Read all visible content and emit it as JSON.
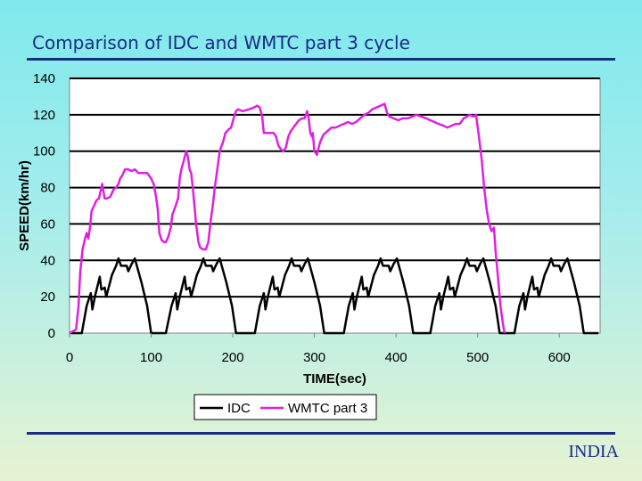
{
  "slide": {
    "title": "Comparison of IDC and WMTC part 3 cycle",
    "footer": "INDIA"
  },
  "colors": {
    "title": "#1b2c86",
    "plot_background": "#ffffff",
    "idc": "#000000",
    "wmtc": "#e020e0"
  },
  "chart_data": {
    "type": "line",
    "xlabel": "TIME(sec)",
    "ylabel": "SPEED(km/hr)",
    "xlim": [
      0,
      650
    ],
    "ylim": [
      0,
      140
    ],
    "xticks": [
      0,
      100,
      200,
      300,
      400,
      500,
      600
    ],
    "yticks": [
      0,
      20,
      40,
      60,
      80,
      100,
      120,
      140
    ],
    "grid": "horizontal",
    "legend_position": "bottom",
    "series": [
      {
        "name": "IDC",
        "color": "#000000",
        "points": [
          [
            0,
            0
          ],
          [
            15,
            0
          ],
          [
            21,
            15
          ],
          [
            26,
            22
          ],
          [
            28,
            13
          ],
          [
            31,
            20
          ],
          [
            37,
            31
          ],
          [
            39,
            24
          ],
          [
            43,
            25
          ],
          [
            45,
            20
          ],
          [
            52,
            32
          ],
          [
            57,
            37
          ],
          [
            60,
            41
          ],
          [
            63,
            37
          ],
          [
            70,
            37
          ],
          [
            72,
            34
          ],
          [
            76,
            38
          ],
          [
            80,
            41
          ],
          [
            88,
            28
          ],
          [
            95,
            15
          ],
          [
            100,
            0
          ],
          [
            118,
            0
          ],
          [
            125,
            15
          ],
          [
            130,
            22
          ],
          [
            132,
            13
          ],
          [
            135,
            20
          ],
          [
            141,
            31
          ],
          [
            143,
            24
          ],
          [
            147,
            25
          ],
          [
            149,
            20
          ],
          [
            156,
            32
          ],
          [
            161,
            37
          ],
          [
            164,
            41
          ],
          [
            167,
            37
          ],
          [
            174,
            37
          ],
          [
            176,
            34
          ],
          [
            180,
            38
          ],
          [
            184,
            41
          ],
          [
            192,
            28
          ],
          [
            199,
            15
          ],
          [
            204,
            0
          ],
          [
            227,
            0
          ],
          [
            233,
            15
          ],
          [
            238,
            22
          ],
          [
            240,
            13
          ],
          [
            243,
            20
          ],
          [
            249,
            31
          ],
          [
            251,
            24
          ],
          [
            255,
            25
          ],
          [
            257,
            20
          ],
          [
            264,
            32
          ],
          [
            269,
            37
          ],
          [
            272,
            41
          ],
          [
            275,
            37
          ],
          [
            282,
            37
          ],
          [
            284,
            34
          ],
          [
            288,
            38
          ],
          [
            292,
            41
          ],
          [
            300,
            28
          ],
          [
            307,
            15
          ],
          [
            312,
            0
          ],
          [
            336,
            0
          ],
          [
            342,
            15
          ],
          [
            347,
            22
          ],
          [
            349,
            13
          ],
          [
            352,
            20
          ],
          [
            358,
            31
          ],
          [
            360,
            24
          ],
          [
            364,
            25
          ],
          [
            366,
            20
          ],
          [
            373,
            32
          ],
          [
            378,
            37
          ],
          [
            381,
            41
          ],
          [
            384,
            37
          ],
          [
            391,
            37
          ],
          [
            393,
            34
          ],
          [
            397,
            38
          ],
          [
            401,
            41
          ],
          [
            409,
            28
          ],
          [
            416,
            15
          ],
          [
            421,
            0
          ],
          [
            442,
            0
          ],
          [
            448,
            15
          ],
          [
            453,
            22
          ],
          [
            455,
            13
          ],
          [
            458,
            20
          ],
          [
            464,
            31
          ],
          [
            466,
            24
          ],
          [
            470,
            25
          ],
          [
            472,
            20
          ],
          [
            479,
            32
          ],
          [
            484,
            37
          ],
          [
            487,
            41
          ],
          [
            490,
            37
          ],
          [
            497,
            37
          ],
          [
            499,
            34
          ],
          [
            503,
            38
          ],
          [
            507,
            41
          ],
          [
            515,
            28
          ],
          [
            522,
            15
          ],
          [
            527,
            0
          ],
          [
            545,
            0
          ],
          [
            551,
            15
          ],
          [
            556,
            22
          ],
          [
            558,
            13
          ],
          [
            561,
            20
          ],
          [
            567,
            31
          ],
          [
            569,
            24
          ],
          [
            573,
            25
          ],
          [
            575,
            20
          ],
          [
            582,
            32
          ],
          [
            587,
            37
          ],
          [
            590,
            41
          ],
          [
            593,
            37
          ],
          [
            600,
            37
          ],
          [
            602,
            34
          ],
          [
            606,
            38
          ],
          [
            610,
            41
          ],
          [
            618,
            28
          ],
          [
            625,
            15
          ],
          [
            630,
            0
          ],
          [
            648,
            0
          ]
        ]
      },
      {
        "name": "WMTC part 3",
        "color": "#e020e0",
        "points": [
          [
            0,
            0
          ],
          [
            8,
            2
          ],
          [
            11,
            15
          ],
          [
            13,
            33
          ],
          [
            16,
            46
          ],
          [
            19,
            52
          ],
          [
            21,
            55
          ],
          [
            23,
            52
          ],
          [
            25,
            58
          ],
          [
            27,
            67
          ],
          [
            30,
            70
          ],
          [
            33,
            73
          ],
          [
            36,
            74
          ],
          [
            38,
            78
          ],
          [
            40,
            82
          ],
          [
            43,
            74
          ],
          [
            46,
            74
          ],
          [
            50,
            75
          ],
          [
            54,
            79
          ],
          [
            57,
            80
          ],
          [
            60,
            82
          ],
          [
            62,
            85
          ],
          [
            65,
            87
          ],
          [
            68,
            90
          ],
          [
            72,
            90
          ],
          [
            76,
            89
          ],
          [
            80,
            90
          ],
          [
            84,
            88
          ],
          [
            90,
            88
          ],
          [
            95,
            88
          ],
          [
            100,
            85
          ],
          [
            103,
            82
          ],
          [
            106,
            75
          ],
          [
            108,
            68
          ],
          [
            110,
            55
          ],
          [
            113,
            51
          ],
          [
            116,
            50
          ],
          [
            118,
            50
          ],
          [
            121,
            53
          ],
          [
            124,
            58
          ],
          [
            126,
            65
          ],
          [
            130,
            70
          ],
          [
            133,
            74
          ],
          [
            135,
            85
          ],
          [
            137,
            90
          ],
          [
            140,
            95
          ],
          [
            143,
            100
          ],
          [
            145,
            97
          ],
          [
            147,
            90
          ],
          [
            149,
            88
          ],
          [
            151,
            80
          ],
          [
            153,
            70
          ],
          [
            155,
            60
          ],
          [
            158,
            50
          ],
          [
            160,
            47
          ],
          [
            164,
            46
          ],
          [
            167,
            46
          ],
          [
            170,
            50
          ],
          [
            173,
            62
          ],
          [
            176,
            72
          ],
          [
            178,
            80
          ],
          [
            181,
            90
          ],
          [
            184,
            100
          ],
          [
            188,
            105
          ],
          [
            191,
            110
          ],
          [
            195,
            112
          ],
          [
            198,
            113
          ],
          [
            201,
            118
          ],
          [
            204,
            122
          ],
          [
            206,
            123
          ],
          [
            212,
            122
          ],
          [
            220,
            123
          ],
          [
            226,
            124
          ],
          [
            230,
            125
          ],
          [
            233,
            124
          ],
          [
            236,
            119
          ],
          [
            238,
            110
          ],
          [
            241,
            110
          ],
          [
            245,
            110
          ],
          [
            250,
            110
          ],
          [
            253,
            108
          ],
          [
            256,
            103
          ],
          [
            259,
            101
          ],
          [
            262,
            100
          ],
          [
            265,
            102
          ],
          [
            268,
            108
          ],
          [
            271,
            111
          ],
          [
            276,
            114
          ],
          [
            281,
            117
          ],
          [
            285,
            118
          ],
          [
            288,
            118
          ],
          [
            291,
            122
          ],
          [
            293,
            118
          ],
          [
            295,
            110
          ],
          [
            297,
            108
          ],
          [
            298,
            110
          ],
          [
            300,
            100
          ],
          [
            303,
            98
          ],
          [
            307,
            105
          ],
          [
            311,
            109
          ],
          [
            316,
            111
          ],
          [
            321,
            113
          ],
          [
            326,
            113
          ],
          [
            331,
            114
          ],
          [
            336,
            115
          ],
          [
            341,
            116
          ],
          [
            346,
            115
          ],
          [
            351,
            116
          ],
          [
            356,
            118
          ],
          [
            361,
            120
          ],
          [
            366,
            121
          ],
          [
            371,
            123
          ],
          [
            376,
            124
          ],
          [
            381,
            125
          ],
          [
            386,
            126
          ],
          [
            389,
            121
          ],
          [
            392,
            119
          ],
          [
            397,
            118
          ],
          [
            403,
            117
          ],
          [
            408,
            118
          ],
          [
            414,
            118
          ],
          [
            420,
            119
          ],
          [
            425,
            120
          ],
          [
            431,
            119
          ],
          [
            437,
            118
          ],
          [
            442,
            117
          ],
          [
            447,
            116
          ],
          [
            452,
            115
          ],
          [
            458,
            114
          ],
          [
            463,
            113
          ],
          [
            468,
            114
          ],
          [
            473,
            115
          ],
          [
            478,
            115
          ],
          [
            483,
            118
          ],
          [
            487,
            119
          ],
          [
            490,
            120
          ],
          [
            495,
            119
          ],
          [
            498,
            120
          ],
          [
            501,
            110
          ],
          [
            505,
            95
          ],
          [
            508,
            80
          ],
          [
            511,
            68
          ],
          [
            514,
            60
          ],
          [
            517,
            56
          ],
          [
            520,
            58
          ],
          [
            522,
            45
          ],
          [
            525,
            30
          ],
          [
            528,
            15
          ],
          [
            531,
            5
          ],
          [
            533,
            0
          ]
        ]
      }
    ]
  }
}
